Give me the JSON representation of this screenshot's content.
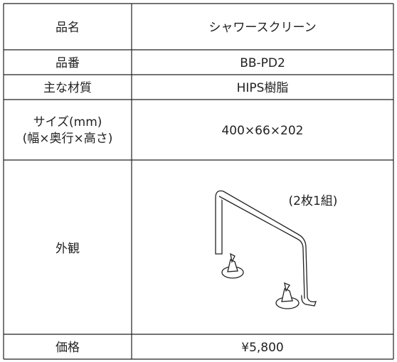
{
  "table": {
    "rows": [
      [
        "品名",
        "シャワースクリーン"
      ],
      [
        "品番",
        "BB-PD2"
      ],
      [
        "主な材質",
        "HIPS樹脂"
      ],
      [
        [
          "サイズ(mm)",
          "(幅×奥行×高さ)"
        ],
        "400×66×202"
      ],
      [
        "外観",
        "(2枚1組)"
      ],
      [
        "価格",
        "¥5,800"
      ]
    ]
  }
}
